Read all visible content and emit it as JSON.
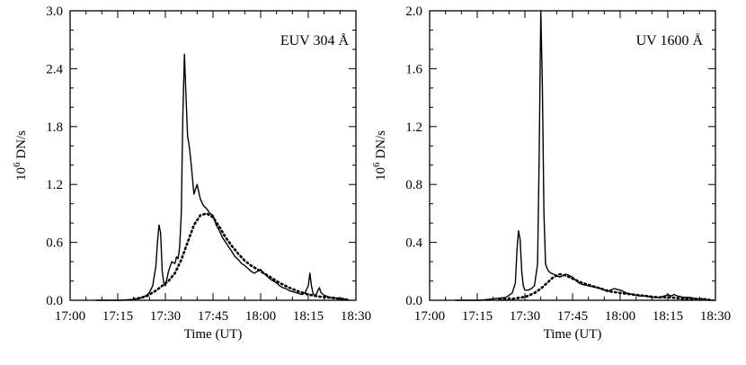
{
  "chart_data": [
    {
      "type": "line",
      "annotation": "EUV 304 Å",
      "xlabel": "Time (UT)",
      "ylabel_base": "10",
      "ylabel_exp": "6",
      "ylabel_unit": " DN/s",
      "xlim_minutes": [
        0,
        90
      ],
      "ylim": [
        0,
        3.0
      ],
      "xticks": [
        0,
        15,
        30,
        45,
        60,
        75,
        90
      ],
      "xtick_labels": [
        "17:00",
        "17:15",
        "17:30",
        "17:45",
        "18:00",
        "18:15",
        "18:30"
      ],
      "yticks": [
        0.0,
        0.6,
        1.2,
        1.8,
        2.4,
        3.0
      ],
      "ytick_labels": [
        "0.0",
        "0.6",
        "1.2",
        "1.8",
        "2.4",
        "3.0"
      ],
      "series": [
        {
          "style": "solid",
          "x": [
            8,
            12,
            16,
            20,
            22,
            24,
            25,
            26,
            27,
            27.5,
            28,
            28.5,
            29,
            29.5,
            30,
            31,
            32,
            33,
            33.5,
            34,
            34.5,
            35,
            35.5,
            36,
            36.5,
            37,
            37.5,
            38,
            39,
            40,
            41,
            42,
            43,
            44,
            45,
            46,
            47,
            48,
            49,
            50,
            51,
            52,
            53,
            54,
            55,
            56,
            57,
            58,
            59,
            60,
            61,
            62,
            63,
            64,
            65,
            66,
            67,
            68,
            69,
            70,
            71,
            72,
            73,
            74,
            75,
            75.5,
            76,
            76.5,
            77,
            77.5,
            78,
            78.5,
            79,
            80,
            81,
            82,
            83,
            84,
            85,
            86,
            87,
            88
          ],
          "y": [
            0.0,
            0.0,
            0.0,
            0.01,
            0.02,
            0.05,
            0.08,
            0.15,
            0.35,
            0.6,
            0.78,
            0.7,
            0.3,
            0.18,
            0.15,
            0.3,
            0.4,
            0.38,
            0.45,
            0.43,
            0.55,
            0.9,
            1.9,
            2.55,
            2.1,
            1.7,
            1.6,
            1.45,
            1.1,
            1.2,
            1.05,
            0.98,
            0.95,
            0.9,
            0.88,
            0.78,
            0.72,
            0.65,
            0.6,
            0.55,
            0.5,
            0.45,
            0.42,
            0.38,
            0.36,
            0.33,
            0.3,
            0.28,
            0.3,
            0.32,
            0.28,
            0.25,
            0.22,
            0.2,
            0.18,
            0.15,
            0.13,
            0.12,
            0.1,
            0.09,
            0.08,
            0.07,
            0.06,
            0.08,
            0.15,
            0.28,
            0.15,
            0.07,
            0.05,
            0.06,
            0.1,
            0.13,
            0.08,
            0.05,
            0.04,
            0.03,
            0.03,
            0.02,
            0.02,
            0.01,
            0.01,
            0.0
          ]
        },
        {
          "style": "dotted",
          "x": [
            20,
            24,
            27,
            29,
            31,
            33,
            35,
            37,
            39,
            41,
            43,
            45,
            47,
            49,
            51,
            53,
            55,
            57,
            60,
            63,
            66,
            69,
            72,
            75,
            78,
            81,
            84,
            87
          ],
          "y": [
            0.01,
            0.04,
            0.1,
            0.15,
            0.2,
            0.28,
            0.42,
            0.6,
            0.78,
            0.88,
            0.9,
            0.86,
            0.76,
            0.65,
            0.56,
            0.48,
            0.41,
            0.36,
            0.3,
            0.24,
            0.18,
            0.13,
            0.09,
            0.06,
            0.04,
            0.03,
            0.02,
            0.01
          ]
        }
      ]
    },
    {
      "type": "line",
      "annotation": "UV 1600 Å",
      "xlabel": "Time (UT)",
      "ylabel_base": "10",
      "ylabel_exp": "6",
      "ylabel_unit": " DN/s",
      "xlim_minutes": [
        0,
        90
      ],
      "ylim": [
        0,
        2.0
      ],
      "xticks": [
        0,
        15,
        30,
        45,
        60,
        75,
        90
      ],
      "xtick_labels": [
        "17:00",
        "17:15",
        "17:30",
        "17:45",
        "18:00",
        "18:15",
        "18:30"
      ],
      "yticks": [
        0.0,
        0.4,
        0.8,
        1.2,
        1.6,
        2.0
      ],
      "ytick_labels": [
        "0.0",
        "0.4",
        "0.8",
        "1.2",
        "1.6",
        "2.0"
      ],
      "series": [
        {
          "style": "solid",
          "x": [
            8,
            12,
            16,
            20,
            24,
            26,
            27,
            27.5,
            28,
            28.5,
            29,
            29.5,
            30,
            31,
            32,
            33,
            34,
            34.5,
            35,
            35.5,
            36,
            36.5,
            37,
            37.5,
            38,
            39,
            40,
            41,
            42,
            43,
            44,
            45,
            46,
            47,
            48,
            50,
            52,
            54,
            56,
            58,
            60,
            62,
            64,
            66,
            68,
            70,
            72,
            74,
            75,
            76,
            77,
            78,
            80,
            82,
            84,
            86,
            88,
            90
          ],
          "y": [
            0.0,
            0.0,
            0.0,
            0.01,
            0.02,
            0.05,
            0.12,
            0.35,
            0.48,
            0.42,
            0.2,
            0.1,
            0.07,
            0.07,
            0.08,
            0.1,
            0.25,
            1.0,
            2.0,
            1.5,
            0.6,
            0.25,
            0.22,
            0.2,
            0.19,
            0.18,
            0.17,
            0.16,
            0.17,
            0.18,
            0.17,
            0.16,
            0.14,
            0.12,
            0.11,
            0.1,
            0.09,
            0.08,
            0.06,
            0.08,
            0.07,
            0.05,
            0.04,
            0.03,
            0.03,
            0.02,
            0.02,
            0.03,
            0.04,
            0.03,
            0.04,
            0.03,
            0.02,
            0.02,
            0.01,
            0.01,
            0.0,
            0.0
          ]
        },
        {
          "style": "dotted",
          "x": [
            22,
            26,
            29,
            31,
            33,
            35,
            37,
            39,
            41,
            43,
            45,
            48,
            51,
            54,
            57,
            60,
            64,
            68,
            72,
            76,
            80,
            84,
            88
          ],
          "y": [
            0.005,
            0.01,
            0.02,
            0.03,
            0.05,
            0.08,
            0.12,
            0.16,
            0.18,
            0.17,
            0.15,
            0.12,
            0.1,
            0.08,
            0.06,
            0.05,
            0.04,
            0.03,
            0.02,
            0.02,
            0.01,
            0.01,
            0.005
          ]
        }
      ]
    }
  ]
}
